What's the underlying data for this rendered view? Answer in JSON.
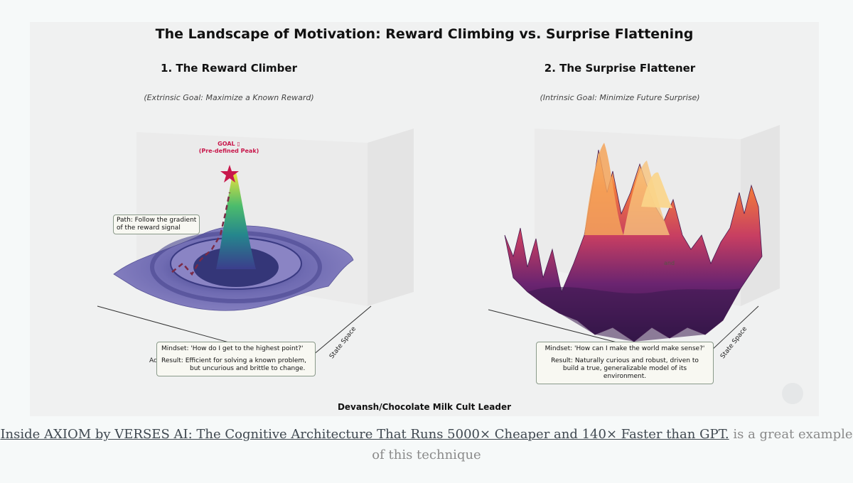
{
  "figure": {
    "title": "The Landscape of Motivation: Reward Climbing vs. Surprise Flattening",
    "credit": "Devansh/Chocolate Milk Cult Leader",
    "left": {
      "title": "1. The Reward Climber",
      "subtitle": "(Extrinsic Goal: Maximize a Known Reward)",
      "goal_label_1": "GOAL ▯",
      "goal_label_2": "(Pre-defined Peak)",
      "path_note_1": "Path: Follow the gradient",
      "path_note_2": "of the reward signal",
      "mindset": "Mindset: 'How do I get to the highest point?'",
      "result_1": "Result: Efficient for solving a known problem,",
      "result_2": "but uncurious and brittle to change.",
      "axis_state": "State Space",
      "axis_partial": "Ac"
    },
    "right": {
      "title": "2. The Surprise Flattener",
      "subtitle": "(Intrinsic Goal: Minimize Future Surprise)",
      "mindset": "Mindset: 'How can I make the world make sense?'",
      "result_1": "Result: Naturally curious and robust, driven to",
      "result_2": "build a true, generalizable model of its environment.",
      "axis_state": "State Space",
      "hidden_label": "and"
    }
  },
  "caption": {
    "link_text": "Inside AXIOM by VERSES AI: The Cognitive Architecture That Runs 5000× Cheaper and 140× Faster than GPT.",
    "rest_text": " is a great example of this technique"
  },
  "colors": {
    "reward_surface": "#7a73b8",
    "reward_peak": "#f0e63a",
    "surprise_high": "#f8c97a",
    "surprise_low": "#3a1a4e",
    "goal_star": "#c8174b"
  }
}
